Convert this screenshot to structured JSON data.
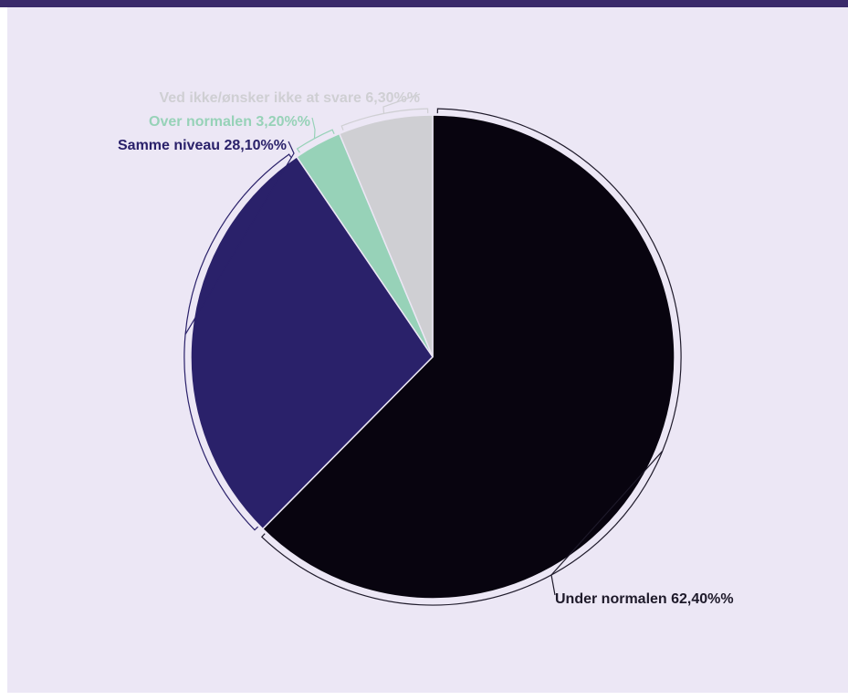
{
  "chart_data": {
    "type": "pie",
    "title": "",
    "slices": [
      {
        "label": "Under normalen",
        "value": 62.4,
        "display": "Under normalen 62,40%%",
        "color": "#08040f",
        "label_color": "#1e1a2a"
      },
      {
        "label": "Samme niveau",
        "value": 28.1,
        "display": "Samme niveau 28,10%%",
        "color": "#2a216a",
        "label_color": "#2a216a"
      },
      {
        "label": "Over normalen",
        "value": 3.2,
        "display": "Over normalen 3,20%%",
        "color": "#97d2b8",
        "label_color": "#97d2b8"
      },
      {
        "label": "Ved ikke/ønsker ikke at svare",
        "value": 6.3,
        "display": "Ved ikke/ønsker ikke at svare 6,30%%",
        "color": "#cfcfd3",
        "label_color": "#cfcfd3"
      }
    ],
    "start_angle_deg": 0,
    "direction": "clockwise",
    "legend": "none"
  },
  "colors": {
    "header_bar": "#3a2a6a",
    "background": "#ece7f5"
  }
}
